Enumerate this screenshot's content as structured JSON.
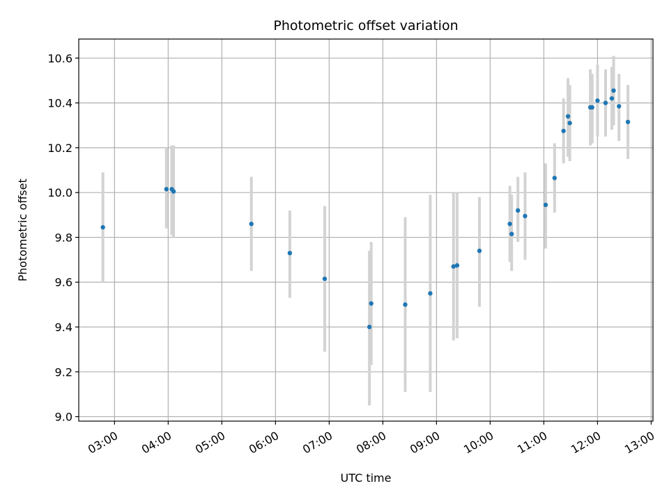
{
  "chart_data": {
    "type": "scatter",
    "title": "Photometric offset variation",
    "xlabel": "UTC time",
    "ylabel": "Photometric offset",
    "xlim": [
      "02:20",
      "13:02"
    ],
    "ylim": [
      8.98,
      10.685
    ],
    "grid": true,
    "x_ticks": [
      "03:00",
      "04:00",
      "05:00",
      "06:00",
      "07:00",
      "08:00",
      "09:00",
      "10:00",
      "11:00",
      "12:00",
      "13:00"
    ],
    "y_ticks": [
      "9.0",
      "9.2",
      "9.4",
      "9.6",
      "9.8",
      "10.0",
      "10.2",
      "10.4",
      "10.6"
    ],
    "point_color": "#1f77b4",
    "errorbar_color": "#d3d3d3",
    "points": [
      {
        "x": "02:47",
        "y": 9.845,
        "ylow": 9.6,
        "yhigh": 10.09
      },
      {
        "x": "03:58",
        "y": 10.015,
        "ylow": 9.84,
        "yhigh": 10.2
      },
      {
        "x": "04:04",
        "y": 10.015,
        "ylow": 9.81,
        "yhigh": 10.21
      },
      {
        "x": "04:06",
        "y": 10.005,
        "ylow": 9.8,
        "yhigh": 10.21
      },
      {
        "x": "05:33",
        "y": 9.86,
        "ylow": 9.65,
        "yhigh": 10.07
      },
      {
        "x": "06:16",
        "y": 9.73,
        "ylow": 9.53,
        "yhigh": 9.92
      },
      {
        "x": "06:55",
        "y": 9.615,
        "ylow": 9.29,
        "yhigh": 9.94
      },
      {
        "x": "07:45",
        "y": 9.4,
        "ylow": 9.05,
        "yhigh": 9.74
      },
      {
        "x": "07:47",
        "y": 9.505,
        "ylow": 9.23,
        "yhigh": 9.78
      },
      {
        "x": "08:25",
        "y": 9.5,
        "ylow": 9.11,
        "yhigh": 9.89
      },
      {
        "x": "08:53",
        "y": 9.55,
        "ylow": 9.11,
        "yhigh": 9.99
      },
      {
        "x": "09:19",
        "y": 9.67,
        "ylow": 9.34,
        "yhigh": 10.0
      },
      {
        "x": "09:23",
        "y": 9.675,
        "ylow": 9.35,
        "yhigh": 10.0
      },
      {
        "x": "09:48",
        "y": 9.74,
        "ylow": 9.49,
        "yhigh": 9.98
      },
      {
        "x": "10:22",
        "y": 9.86,
        "ylow": 9.69,
        "yhigh": 10.03
      },
      {
        "x": "10:24",
        "y": 9.815,
        "ylow": 9.65,
        "yhigh": 9.99
      },
      {
        "x": "10:31",
        "y": 9.92,
        "ylow": 9.78,
        "yhigh": 10.07
      },
      {
        "x": "10:39",
        "y": 9.895,
        "ylow": 9.7,
        "yhigh": 10.09
      },
      {
        "x": "11:02",
        "y": 9.945,
        "ylow": 9.75,
        "yhigh": 10.13
      },
      {
        "x": "11:12",
        "y": 10.065,
        "ylow": 9.91,
        "yhigh": 10.22
      },
      {
        "x": "11:22",
        "y": 10.275,
        "ylow": 10.13,
        "yhigh": 10.42
      },
      {
        "x": "11:27",
        "y": 10.34,
        "ylow": 10.16,
        "yhigh": 10.51
      },
      {
        "x": "11:29",
        "y": 10.31,
        "ylow": 10.14,
        "yhigh": 10.48
      },
      {
        "x": "11:52",
        "y": 10.38,
        "ylow": 10.21,
        "yhigh": 10.55
      },
      {
        "x": "11:54",
        "y": 10.38,
        "ylow": 10.22,
        "yhigh": 10.53
      },
      {
        "x": "12:00",
        "y": 10.41,
        "ylow": 10.25,
        "yhigh": 10.57
      },
      {
        "x": "12:09",
        "y": 10.4,
        "ylow": 10.25,
        "yhigh": 10.55
      },
      {
        "x": "12:16",
        "y": 10.42,
        "ylow": 10.28,
        "yhigh": 10.56
      },
      {
        "x": "12:18",
        "y": 10.455,
        "ylow": 10.3,
        "yhigh": 10.61
      },
      {
        "x": "12:24",
        "y": 10.385,
        "ylow": 10.23,
        "yhigh": 10.53
      },
      {
        "x": "12:34",
        "y": 10.315,
        "ylow": 10.15,
        "yhigh": 10.48
      }
    ]
  }
}
